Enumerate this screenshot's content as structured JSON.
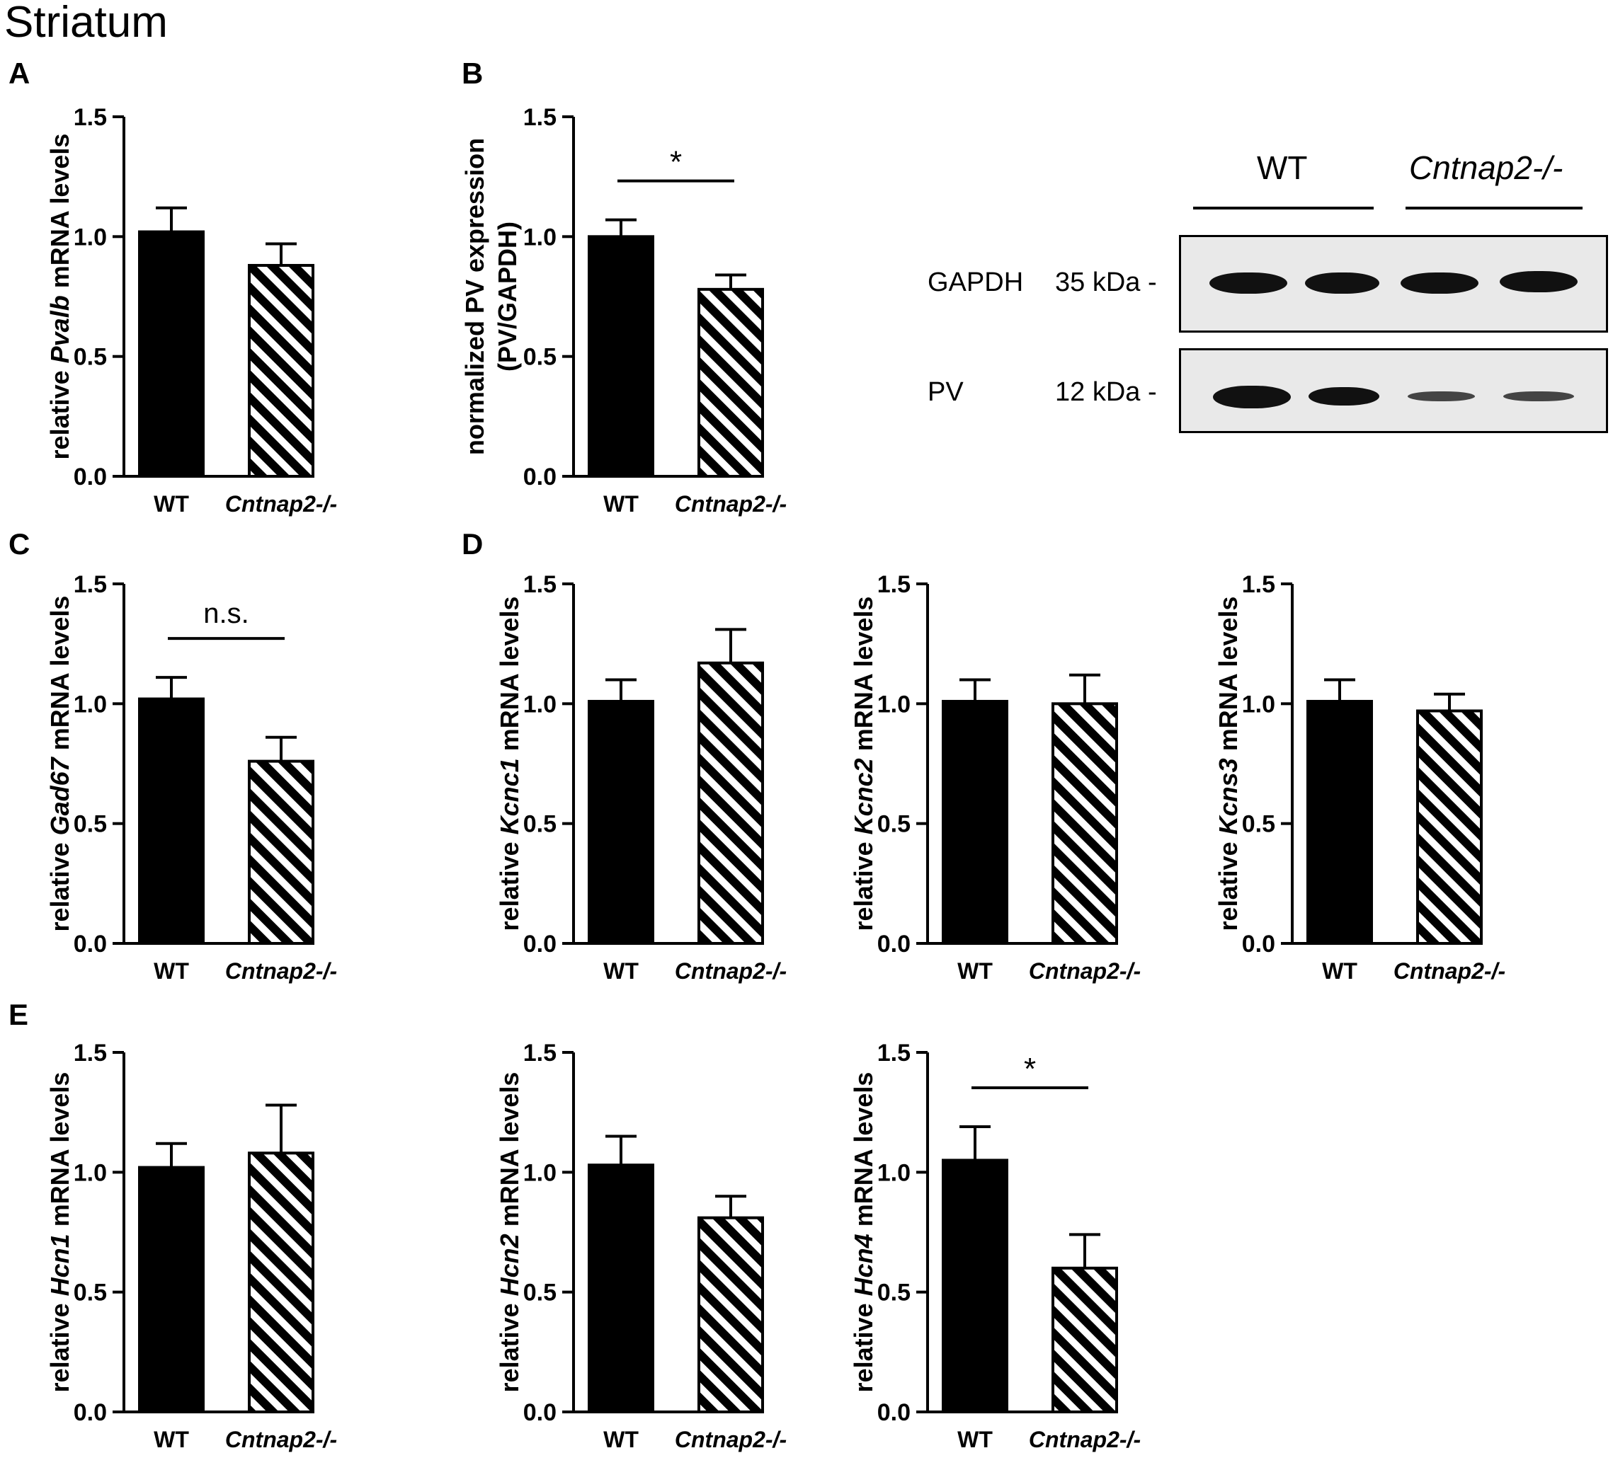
{
  "figure": {
    "heading": "Striatum"
  },
  "western_blot": {
    "lane_groups": [
      "WT",
      "Cntnap2-/-"
    ],
    "rows": [
      {
        "protein": "GAPDH",
        "marker": "35 kDa -",
        "band_intensity": [
          0.95,
          0.95,
          0.9,
          0.95
        ]
      },
      {
        "protein": "PV",
        "marker": "12 kDa -",
        "band_intensity": [
          1.0,
          0.9,
          0.45,
          0.45
        ]
      }
    ]
  },
  "chart_data": [
    {
      "panel": "A",
      "type": "bar",
      "categories": [
        "WT",
        "Cntnap2-/-"
      ],
      "values": [
        1.02,
        0.88
      ],
      "errors": [
        0.1,
        0.09
      ],
      "ylabel_pre": "relative ",
      "ylabel_gene": "Pvalb",
      "ylabel_post": " mRNA levels",
      "ylim": [
        0,
        1.5
      ],
      "yticks": [
        "0.0",
        "0.5",
        "1.0",
        "1.5"
      ],
      "annotation": ""
    },
    {
      "panel": "B",
      "type": "bar",
      "categories": [
        "WT",
        "Cntnap2-/-"
      ],
      "values": [
        1.0,
        0.78
      ],
      "errors": [
        0.07,
        0.06
      ],
      "ylabel_line1": "normalized PV expression",
      "ylabel_line2": "(PV/GAPDH)",
      "ylim": [
        0,
        1.5
      ],
      "yticks": [
        "0.0",
        "0.5",
        "1.0",
        "1.5"
      ],
      "annotation": "*"
    },
    {
      "panel": "C",
      "type": "bar",
      "categories": [
        "WT",
        "Cntnap2-/-"
      ],
      "values": [
        1.02,
        0.76
      ],
      "errors": [
        0.09,
        0.1
      ],
      "ylabel_pre": "relative ",
      "ylabel_gene": "Gad67",
      "ylabel_post": " mRNA levels",
      "ylim": [
        0,
        1.5
      ],
      "yticks": [
        "0.0",
        "0.5",
        "1.0",
        "1.5"
      ],
      "annotation": "n.s."
    },
    {
      "panel": "D",
      "type": "bar",
      "categories": [
        "WT",
        "Cntnap2-/-"
      ],
      "values": [
        1.01,
        1.17
      ],
      "errors": [
        0.09,
        0.14
      ],
      "ylabel_pre": "relative ",
      "ylabel_gene": "Kcnc1",
      "ylabel_post": " mRNA levels",
      "ylim": [
        0,
        1.5
      ],
      "yticks": [
        "0.0",
        "0.5",
        "1.0",
        "1.5"
      ],
      "annotation": ""
    },
    {
      "panel": "",
      "type": "bar",
      "categories": [
        "WT",
        "Cntnap2-/-"
      ],
      "values": [
        1.01,
        1.0
      ],
      "errors": [
        0.09,
        0.12
      ],
      "ylabel_pre": "relative ",
      "ylabel_gene": "Kcnc2",
      "ylabel_post": " mRNA levels",
      "ylim": [
        0,
        1.5
      ],
      "yticks": [
        "0.0",
        "0.5",
        "1.0",
        "1.5"
      ],
      "annotation": ""
    },
    {
      "panel": "",
      "type": "bar",
      "categories": [
        "WT",
        "Cntnap2-/-"
      ],
      "values": [
        1.01,
        0.97
      ],
      "errors": [
        0.09,
        0.07
      ],
      "ylabel_pre": "relative ",
      "ylabel_gene": "Kcns3",
      "ylabel_post": " mRNA levels",
      "ylim": [
        0,
        1.5
      ],
      "yticks": [
        "0.0",
        "0.5",
        "1.0",
        "1.5"
      ],
      "annotation": ""
    },
    {
      "panel": "E",
      "type": "bar",
      "categories": [
        "WT",
        "Cntnap2-/-"
      ],
      "values": [
        1.02,
        1.08
      ],
      "errors": [
        0.1,
        0.2
      ],
      "ylabel_pre": "relative ",
      "ylabel_gene": "Hcn1",
      "ylabel_post": " mRNA levels",
      "ylim": [
        0,
        1.5
      ],
      "yticks": [
        "0.0",
        "0.5",
        "1.0",
        "1.5"
      ],
      "annotation": ""
    },
    {
      "panel": "",
      "type": "bar",
      "categories": [
        "WT",
        "Cntnap2-/-"
      ],
      "values": [
        1.03,
        0.81
      ],
      "errors": [
        0.12,
        0.09
      ],
      "ylabel_pre": "relative ",
      "ylabel_gene": "Hcn2",
      "ylabel_post": " mRNA levels",
      "ylim": [
        0,
        1.5
      ],
      "yticks": [
        "0.0",
        "0.5",
        "1.0",
        "1.5"
      ],
      "annotation": ""
    },
    {
      "panel": "",
      "type": "bar",
      "categories": [
        "WT",
        "Cntnap2-/-"
      ],
      "values": [
        1.05,
        0.6
      ],
      "errors": [
        0.14,
        0.14
      ],
      "ylabel_pre": "relative ",
      "ylabel_gene": "Hcn4",
      "ylabel_post": " mRNA levels",
      "ylim": [
        0,
        1.5
      ],
      "yticks": [
        "0.0",
        "0.5",
        "1.0",
        "1.5"
      ],
      "annotation": "*"
    }
  ],
  "colors": {
    "bar_wt": "#000000",
    "hatch": "#000000",
    "blot_bg": "#e9e9e9"
  }
}
